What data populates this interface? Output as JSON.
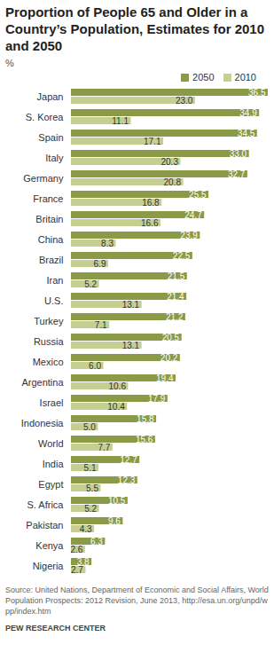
{
  "chart_data": {
    "type": "bar",
    "orientation": "horizontal",
    "title": "Proportion of People 65 and Older in a Country’s Population, Estimates for 2010 and 2050",
    "subtitle": "%",
    "source": "Source: United Nations, Department of Economic and Social Affairs, World Population Prospects: 2012 Revision, June 2013, http://esa.un.org/unpd/wpp/index.htm",
    "credit": "PEW RESEARCH CENTER",
    "categories": [
      "Japan",
      "S. Korea",
      "Spain",
      "Italy",
      "Germany",
      "France",
      "Britain",
      "China",
      "Brazil",
      "Iran",
      "U.S.",
      "Turkey",
      "Russia",
      "Mexico",
      "Argentina",
      "Israel",
      "Indonesia",
      "World",
      "India",
      "Egypt",
      "S. Africa",
      "Pakistan",
      "Kenya",
      "Nigeria"
    ],
    "series": [
      {
        "name": "2050",
        "color": "#8b9a46",
        "values": [
          36.5,
          34.9,
          34.5,
          33.0,
          32.7,
          25.5,
          24.7,
          23.9,
          22.5,
          21.5,
          21.4,
          21.2,
          20.5,
          20.2,
          19.4,
          17.9,
          15.8,
          15.6,
          12.7,
          12.3,
          10.5,
          9.6,
          6.3,
          3.8
        ],
        "value_labels": [
          "36.5",
          "34.9",
          "34.5",
          "33.0",
          "32.7",
          "25.5",
          "24.7",
          "23.9",
          "22.5",
          "21.5",
          "21.4",
          "21.2",
          "20.5",
          "20.2",
          "19.4",
          "17.9",
          "15.8",
          "15.6",
          "12.7",
          "12.3",
          "10.5",
          "9.6",
          "6.3",
          "3.8"
        ]
      },
      {
        "name": "2010",
        "color": "#c5cf92",
        "values": [
          23.0,
          11.1,
          17.1,
          20.3,
          20.8,
          16.8,
          16.6,
          8.3,
          6.9,
          5.2,
          13.1,
          7.1,
          13.1,
          6.0,
          10.6,
          10.4,
          5.0,
          7.7,
          5.1,
          5.5,
          5.2,
          4.3,
          2.6,
          2.7
        ],
        "value_labels": [
          "23.0",
          "11.1",
          "17.1",
          "20.3",
          "20.8",
          "16.8",
          "16.6",
          "8.3",
          "6.9",
          "5.2",
          "13.1",
          "7.1",
          "13.1",
          "6.0",
          "10.6",
          "10.4",
          "5.0",
          "7.7",
          "5.1",
          "5.5",
          "5.2",
          "4.3",
          "2.6",
          "2.7"
        ]
      }
    ],
    "xlim": [
      0,
      37
    ],
    "data_labels": true,
    "tick_labels": "y",
    "legend": "top"
  }
}
